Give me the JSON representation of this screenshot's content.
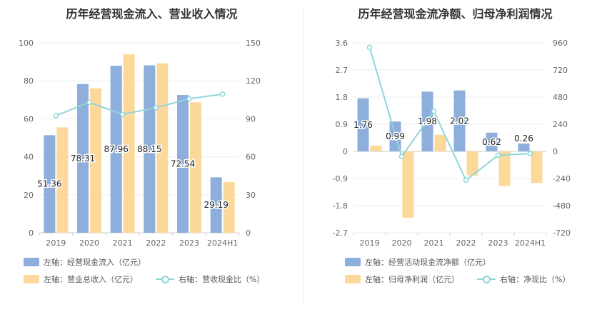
{
  "colors": {
    "blue": "#8eaedb",
    "orange": "#fdd89b",
    "line": "#8fd6da",
    "grid": "#eeeeee"
  },
  "charts": [
    {
      "title": "历年经营现金流入、营业收入情况",
      "legend": [
        "左轴：经营现金流入（亿元）",
        "左轴：营业总收入（亿元）",
        "右轴：营收现金比（%）"
      ],
      "chart_data": {
        "type": "bar",
        "categories": [
          "2019",
          "2020",
          "2021",
          "2022",
          "2023",
          "2024H1"
        ],
        "left_axis": {
          "min": 0,
          "max": 100,
          "ticks": [
            0,
            20,
            40,
            60,
            80,
            100
          ]
        },
        "right_axis": {
          "min": 0,
          "max": 150,
          "ticks": [
            0,
            30,
            60,
            90,
            120,
            150
          ]
        },
        "series": [
          {
            "name": "左轴：经营现金流入（亿元）",
            "axis": "left",
            "kind": "bar",
            "values": [
              51.36,
              78.31,
              87.96,
              88.15,
              72.54,
              29.19
            ],
            "labels": [
              "51.36",
              "78.31",
              "87.96",
              "88.15",
              "72.54",
              "29.19"
            ]
          },
          {
            "name": "左轴：营业总收入（亿元）",
            "axis": "left",
            "kind": "bar",
            "values": [
              55.5,
              76.0,
              94.0,
              89.2,
              68.7,
              26.7
            ]
          },
          {
            "name": "右轴：营收现金比（%）",
            "axis": "right",
            "kind": "line",
            "values": [
              92.5,
              103.0,
              93.5,
              98.8,
              105.8,
              109.5
            ]
          }
        ]
      }
    },
    {
      "title": "历年经营现金流净额、归母净利润情况",
      "legend": [
        "左轴：经营活动现金流净额（亿元）",
        "左轴：归母净利润（亿元）",
        "右轴：净现比（%）"
      ],
      "chart_data": {
        "type": "bar",
        "categories": [
          "2019",
          "2020",
          "2021",
          "2022",
          "2023",
          "2024H1"
        ],
        "left_axis": {
          "min": -2.7,
          "max": 3.6,
          "ticks": [
            "-2.7",
            "-1.8",
            "-0.9",
            "0",
            "0.9",
            "1.8",
            "2.7",
            "3.6"
          ]
        },
        "right_axis": {
          "min": -720,
          "max": 960,
          "ticks": [
            "-720",
            "-480",
            "-240",
            "0",
            "240",
            "480",
            "720",
            "960"
          ]
        },
        "series": [
          {
            "name": "左轴：经营活动现金流净额（亿元）",
            "axis": "left",
            "kind": "bar",
            "values": [
              1.76,
              0.99,
              1.98,
              2.02,
              0.62,
              0.26
            ],
            "labels": [
              "1.76",
              "0.99",
              "1.98",
              "2.02",
              "0.62",
              "0.26"
            ]
          },
          {
            "name": "左轴：归母净利润（亿元）",
            "axis": "left",
            "kind": "bar",
            "values": [
              0.19,
              -2.2,
              0.55,
              -0.8,
              -1.15,
              -1.05
            ]
          },
          {
            "name": "右轴：净现比（%）",
            "axis": "right",
            "kind": "line",
            "values": [
              920,
              -45,
              355,
              -255,
              -35,
              -20
            ]
          }
        ]
      }
    }
  ]
}
